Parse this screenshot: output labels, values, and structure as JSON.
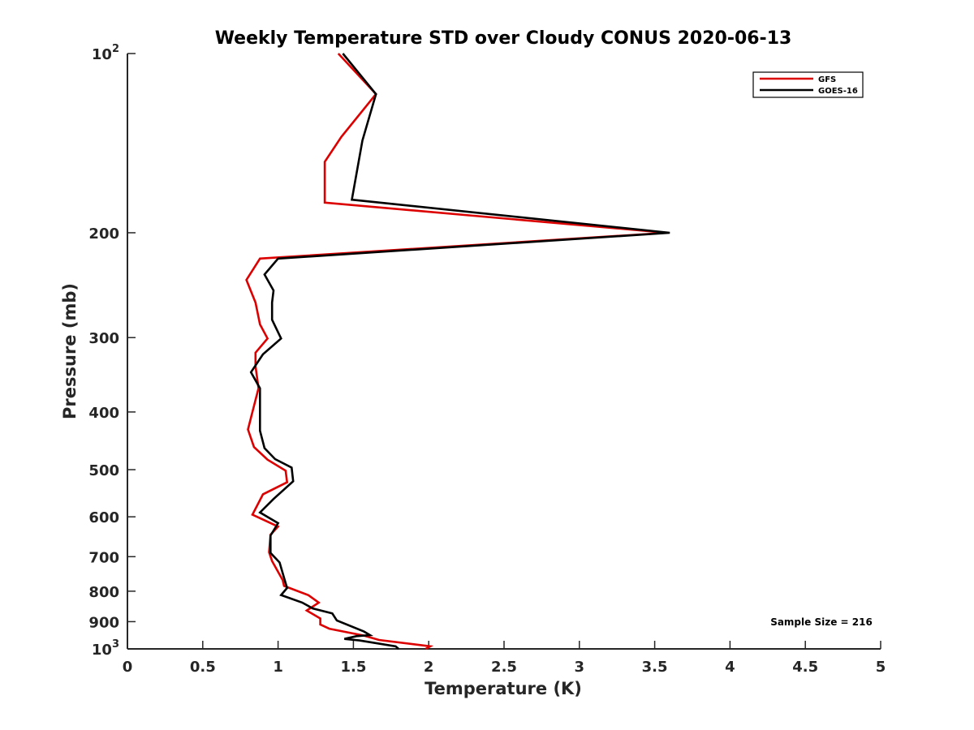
{
  "chart_data": {
    "type": "line",
    "title": "Weekly Temperature STD over Cloudy CONUS 2020-06-13",
    "xlabel": "Temperature (K)",
    "ylabel": "Pressure (mb)",
    "xlim": [
      0,
      5
    ],
    "ylim": [
      1000,
      100
    ],
    "yscale": "log",
    "y_reversed": true,
    "x_ticks": [
      "0",
      "0.5",
      "1",
      "1.5",
      "2",
      "2.5",
      "3",
      "3.5",
      "4",
      "4.5",
      "5"
    ],
    "x_tick_values": [
      0,
      0.5,
      1,
      1.5,
      2,
      2.5,
      3,
      3.5,
      4,
      4.5,
      5
    ],
    "y_ticks": [
      {
        "value": 100,
        "base": "10",
        "exp": "2"
      },
      {
        "value": 200,
        "label": "200"
      },
      {
        "value": 300,
        "label": "300"
      },
      {
        "value": 400,
        "label": "400"
      },
      {
        "value": 500,
        "label": "500"
      },
      {
        "value": 600,
        "label": "600"
      },
      {
        "value": 700,
        "label": "700"
      },
      {
        "value": 800,
        "label": "800"
      },
      {
        "value": 900,
        "label": "900"
      },
      {
        "value": 1000,
        "base": "10",
        "exp": "3"
      }
    ],
    "grid": false,
    "legend_position": "top-right",
    "series": [
      {
        "name": "GFS",
        "color": "#dd0000",
        "points": [
          [
            1.4,
            100
          ],
          [
            1.65,
            117
          ],
          [
            1.42,
            138
          ],
          [
            1.31,
            152
          ],
          [
            1.31,
            178
          ],
          [
            3.58,
            200
          ],
          [
            0.88,
            221
          ],
          [
            0.79,
            240
          ],
          [
            0.85,
            262
          ],
          [
            0.88,
            285
          ],
          [
            0.93,
            301
          ],
          [
            0.85,
            318
          ],
          [
            0.85,
            335
          ],
          [
            0.87,
            365
          ],
          [
            0.83,
            400
          ],
          [
            0.8,
            428
          ],
          [
            0.84,
            458
          ],
          [
            0.93,
            481
          ],
          [
            1.05,
            502
          ],
          [
            1.06,
            525
          ],
          [
            0.9,
            550
          ],
          [
            0.83,
            595
          ],
          [
            1.0,
            623
          ],
          [
            0.95,
            643
          ],
          [
            0.94,
            688
          ],
          [
            0.96,
            712
          ],
          [
            1.03,
            766
          ],
          [
            1.04,
            784
          ],
          [
            1.2,
            812
          ],
          [
            1.27,
            836
          ],
          [
            1.19,
            862
          ],
          [
            1.28,
            889
          ],
          [
            1.28,
            910
          ],
          [
            1.34,
            925
          ],
          [
            1.57,
            950
          ],
          [
            1.67,
            966
          ],
          [
            2.01,
            990
          ],
          [
            1.98,
            1000
          ]
        ]
      },
      {
        "name": "GOES-16",
        "color": "#000000",
        "points": [
          [
            1.43,
            100
          ],
          [
            1.65,
            117
          ],
          [
            1.56,
            140
          ],
          [
            1.49,
            176
          ],
          [
            3.6,
            200
          ],
          [
            1.0,
            221
          ],
          [
            0.91,
            235
          ],
          [
            0.97,
            250
          ],
          [
            0.96,
            262
          ],
          [
            0.96,
            280
          ],
          [
            1.02,
            301
          ],
          [
            0.9,
            320
          ],
          [
            0.82,
            343
          ],
          [
            0.88,
            365
          ],
          [
            0.88,
            400
          ],
          [
            0.88,
            430
          ],
          [
            0.91,
            460
          ],
          [
            0.98,
            480
          ],
          [
            1.09,
            496
          ],
          [
            1.1,
            523
          ],
          [
            0.97,
            560
          ],
          [
            0.88,
            590
          ],
          [
            1.0,
            615
          ],
          [
            0.95,
            645
          ],
          [
            0.95,
            690
          ],
          [
            1.01,
            716
          ],
          [
            1.04,
            760
          ],
          [
            1.06,
            790
          ],
          [
            1.02,
            812
          ],
          [
            1.16,
            836
          ],
          [
            1.23,
            855
          ],
          [
            1.36,
            872
          ],
          [
            1.39,
            896
          ],
          [
            1.57,
            935
          ],
          [
            1.61,
            948
          ],
          [
            1.52,
            952
          ],
          [
            1.44,
            962
          ],
          [
            1.54,
            968
          ],
          [
            1.78,
            990
          ],
          [
            1.8,
            1000
          ]
        ]
      }
    ],
    "legend": [
      "GFS",
      "GOES-16"
    ],
    "annotation": "Sample Size = 216"
  }
}
